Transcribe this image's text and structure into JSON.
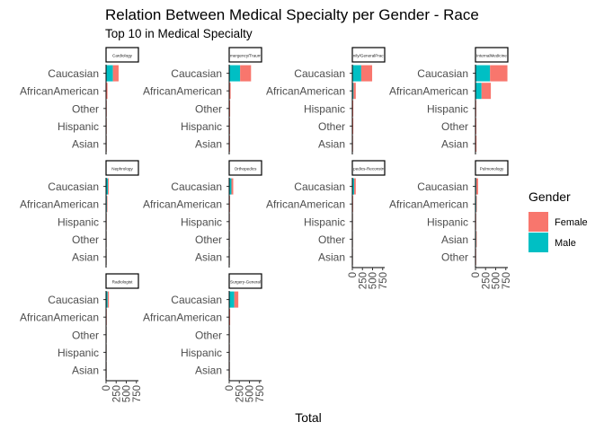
{
  "chart_data": {
    "type": "bar",
    "orientation": "horizontal",
    "stacked": true,
    "title": "Relation Between Medical Specialty per Gender - Race",
    "subtitle": "Top 10 in Medical Specialty",
    "xlabel": "Total",
    "ylabel": "",
    "xlim": [
      0,
      800
    ],
    "x_ticks": [
      "0",
      "250",
      "500",
      "750"
    ],
    "legend": {
      "title": "Gender",
      "position": "right",
      "entries": [
        {
          "label": "Female",
          "color": "#F8766D"
        },
        {
          "label": "Male",
          "color": "#00BFC4"
        }
      ]
    },
    "grid": false,
    "panels": [
      {
        "strip": "Cardiology",
        "categories": [
          "Caucasian",
          "AfricanAmerican",
          "Other",
          "Hispanic",
          "Asian"
        ],
        "series": [
          {
            "name": "Female",
            "values": [
              140,
              25,
              2,
              2,
              2
            ]
          },
          {
            "name": "Male",
            "values": [
              170,
              10,
              4,
              3,
              2
            ]
          }
        ]
      },
      {
        "strip": "Emergency/Trauma",
        "categories": [
          "Caucasian",
          "AfricanAmerican",
          "Other",
          "Hispanic",
          "Asian"
        ],
        "series": [
          {
            "name": "Female",
            "values": [
              270,
              25,
              10,
              10,
              10
            ]
          },
          {
            "name": "Male",
            "values": [
              270,
              10,
              10,
              6,
              6
            ]
          }
        ]
      },
      {
        "strip": "Family/GeneralPractice",
        "categories": [
          "Caucasian",
          "AfricanAmerican",
          "Hispanic",
          "Other",
          "Asian"
        ],
        "series": [
          {
            "name": "Female",
            "values": [
              270,
              55,
              6,
              12,
              6
            ]
          },
          {
            "name": "Male",
            "values": [
              220,
              30,
              10,
              10,
              4
            ]
          }
        ]
      },
      {
        "strip": "InternalMedicine",
        "categories": [
          "Caucasian",
          "AfricanAmerican",
          "Hispanic",
          "Other",
          "Asian"
        ],
        "series": [
          {
            "name": "Female",
            "values": [
              430,
              230,
              8,
              6,
              4
            ]
          },
          {
            "name": "Male",
            "values": [
              360,
              150,
              6,
              8,
              12
            ]
          }
        ]
      },
      {
        "strip": "Nephrology",
        "categories": [
          "Caucasian",
          "AfricanAmerican",
          "Hispanic",
          "Other",
          "Asian"
        ],
        "series": [
          {
            "name": "Female",
            "values": [
              20,
              8,
              2,
              1,
              1
            ]
          },
          {
            "name": "Male",
            "values": [
              45,
              20,
              2,
              1,
              1
            ]
          }
        ]
      },
      {
        "strip": "Orthopedics",
        "categories": [
          "Caucasian",
          "AfricanAmerican",
          "Hispanic",
          "Other",
          "Asian"
        ],
        "series": [
          {
            "name": "Female",
            "values": [
              45,
              12,
              2,
              1,
              1
            ]
          },
          {
            "name": "Male",
            "values": [
              55,
              6,
              2,
              1,
              1
            ]
          }
        ]
      },
      {
        "strip": "Orthopedics-Reconstructive",
        "categories": [
          "Caucasian",
          "AfricanAmerican",
          "Hispanic",
          "Other",
          "Asian"
        ],
        "series": [
          {
            "name": "Female",
            "values": [
              40,
              12,
              2,
              1,
              1
            ]
          },
          {
            "name": "Male",
            "values": [
              45,
              6,
              2,
              1,
              1
            ]
          }
        ]
      },
      {
        "strip": "Pulmonology",
        "categories": [
          "Caucasian",
          "AfricanAmerican",
          "Hispanic",
          "Asian",
          "Other"
        ],
        "series": [
          {
            "name": "Female",
            "values": [
              45,
              10,
              4,
              4,
              4
            ]
          },
          {
            "name": "Male",
            "values": [
              20,
              20,
              4,
              18,
              4
            ]
          }
        ]
      },
      {
        "strip": "Radiologist",
        "categories": [
          "Caucasian",
          "AfricanAmerican",
          "Other",
          "Hispanic",
          "Asian"
        ],
        "series": [
          {
            "name": "Female",
            "values": [
              30,
              4,
              1,
              1,
              1
            ]
          },
          {
            "name": "Male",
            "values": [
              40,
              4,
              1,
              1,
              1
            ]
          }
        ]
      },
      {
        "strip": "Surgery-General",
        "categories": [
          "Caucasian",
          "AfricanAmerican",
          "Other",
          "Hispanic",
          "Asian"
        ],
        "series": [
          {
            "name": "Female",
            "values": [
              100,
              10,
              2,
              2,
              2
            ]
          },
          {
            "name": "Male",
            "values": [
              125,
              10,
              2,
              2,
              2
            ]
          }
        ]
      }
    ]
  }
}
